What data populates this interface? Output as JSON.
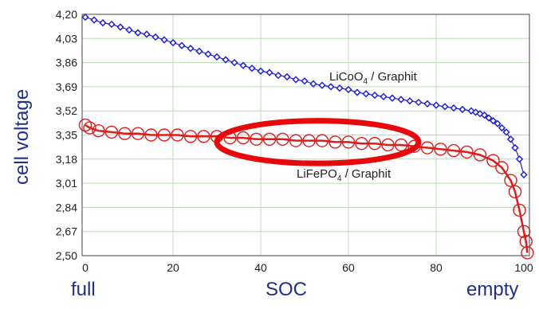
{
  "chart_data": {
    "type": "line",
    "xlim": [
      0,
      100
    ],
    "ylim": [
      2.5,
      4.2
    ],
    "x_ticks": [
      "0",
      "20",
      "40",
      "60",
      "80",
      "100"
    ],
    "y_ticks": [
      "2,50",
      "2,67",
      "2,84",
      "3,01",
      "3,18",
      "3,35",
      "3,52",
      "3,69",
      "3,86",
      "4,03",
      "4,20"
    ],
    "ylabel": "cell voltage",
    "grid": true,
    "series": [
      {
        "name_parts": [
          "LiCoO",
          "4",
          " / Graphit"
        ],
        "color": "#2323d8",
        "marker": "diamond",
        "points": [
          [
            0,
            4.18
          ],
          [
            2,
            4.16
          ],
          [
            4,
            4.14
          ],
          [
            6,
            4.13
          ],
          [
            8,
            4.11
          ],
          [
            10,
            4.09
          ],
          [
            12,
            4.07
          ],
          [
            14,
            4.06
          ],
          [
            16,
            4.04
          ],
          [
            18,
            4.02
          ],
          [
            20,
            4.0
          ],
          [
            22,
            3.98
          ],
          [
            24,
            3.96
          ],
          [
            26,
            3.94
          ],
          [
            28,
            3.92
          ],
          [
            30,
            3.9
          ],
          [
            32,
            3.88
          ],
          [
            34,
            3.86
          ],
          [
            36,
            3.84
          ],
          [
            38,
            3.82
          ],
          [
            40,
            3.8
          ],
          [
            42,
            3.79
          ],
          [
            44,
            3.77
          ],
          [
            46,
            3.76
          ],
          [
            48,
            3.74
          ],
          [
            50,
            3.73
          ],
          [
            52,
            3.71
          ],
          [
            54,
            3.7
          ],
          [
            56,
            3.69
          ],
          [
            58,
            3.68
          ],
          [
            60,
            3.67
          ],
          [
            62,
            3.65
          ],
          [
            64,
            3.64
          ],
          [
            66,
            3.63
          ],
          [
            68,
            3.62
          ],
          [
            70,
            3.61
          ],
          [
            72,
            3.6
          ],
          [
            74,
            3.59
          ],
          [
            76,
            3.58
          ],
          [
            78,
            3.57
          ],
          [
            80,
            3.56
          ],
          [
            82,
            3.55
          ],
          [
            84,
            3.54
          ],
          [
            86,
            3.53
          ],
          [
            88,
            3.52
          ],
          [
            89,
            3.51
          ],
          [
            90,
            3.5
          ],
          [
            91,
            3.49
          ],
          [
            92,
            3.47
          ],
          [
            93,
            3.45
          ],
          [
            94,
            3.43
          ],
          [
            95,
            3.4
          ],
          [
            96,
            3.37
          ],
          [
            97,
            3.32
          ],
          [
            98,
            3.26
          ],
          [
            99,
            3.18
          ],
          [
            100,
            3.07
          ]
        ]
      },
      {
        "name_parts": [
          "LiFePO",
          "4",
          " / Graphit"
        ],
        "color": "#e01b1b",
        "marker": "circle",
        "points": [
          [
            0,
            3.42
          ],
          [
            1,
            3.4
          ],
          [
            3,
            3.38
          ],
          [
            6,
            3.37
          ],
          [
            9,
            3.36
          ],
          [
            12,
            3.36
          ],
          [
            15,
            3.35
          ],
          [
            18,
            3.35
          ],
          [
            21,
            3.35
          ],
          [
            24,
            3.34
          ],
          [
            27,
            3.34
          ],
          [
            30,
            3.34
          ],
          [
            33,
            3.33
          ],
          [
            36,
            3.33
          ],
          [
            39,
            3.32
          ],
          [
            42,
            3.32
          ],
          [
            45,
            3.32
          ],
          [
            48,
            3.31
          ],
          [
            51,
            3.31
          ],
          [
            54,
            3.31
          ],
          [
            57,
            3.3
          ],
          [
            60,
            3.3
          ],
          [
            63,
            3.29
          ],
          [
            66,
            3.29
          ],
          [
            69,
            3.28
          ],
          [
            72,
            3.28
          ],
          [
            75,
            3.27
          ],
          [
            78,
            3.26
          ],
          [
            81,
            3.25
          ],
          [
            84,
            3.24
          ],
          [
            87,
            3.23
          ],
          [
            90,
            3.21
          ],
          [
            93,
            3.17
          ],
          [
            95,
            3.12
          ],
          [
            97,
            3.03
          ],
          [
            98,
            2.95
          ],
          [
            99,
            2.82
          ],
          [
            100,
            2.67
          ],
          [
            100.5,
            2.6
          ],
          [
            100.8,
            2.52
          ]
        ]
      }
    ],
    "annotation": {
      "shape": "ellipse",
      "color": "#e8070b",
      "center": [
        53,
        3.3
      ],
      "radius_x": 23,
      "radius_y": 0.15
    },
    "xlabel": "SOC",
    "x_end_labels": {
      "left": "full",
      "right": "empty"
    }
  }
}
